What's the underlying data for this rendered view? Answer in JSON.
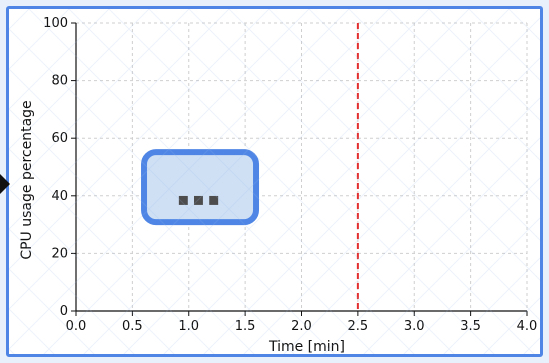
{
  "chart_data": {
    "type": "line",
    "title": "",
    "xlabel": "Time [min]",
    "ylabel": "CPU usage percentage",
    "xlim": [
      0.0,
      4.0
    ],
    "ylim": [
      0,
      100
    ],
    "x_ticks": [
      0.0,
      0.5,
      1.0,
      1.5,
      2.0,
      2.5,
      3.0,
      3.5,
      4.0
    ],
    "x_tick_labels": [
      "0.0",
      "0.5",
      "1.0",
      "1.5",
      "2.0",
      "2.5",
      "3.0",
      "3.5",
      "4.0"
    ],
    "y_ticks": [
      0,
      20,
      40,
      60,
      80,
      100
    ],
    "y_tick_labels": [
      "0",
      "20",
      "40",
      "60",
      "80",
      "100"
    ],
    "grid": true,
    "series": [],
    "reference_lines": [
      {
        "orientation": "vertical",
        "x": 2.5,
        "color": "#e32f2f",
        "style": "dashed"
      }
    ],
    "loading_badge": {
      "text": "▪▪▪",
      "x_center": 1.1,
      "y_center": 43
    }
  },
  "colors": {
    "frame": "#4f86e6",
    "reference_line": "#e32f2f",
    "badge_fill": "#cfe0f4",
    "badge_stroke": "#4f86e6",
    "badge_dots": "#4d4d4d"
  },
  "icons": {
    "left_arrow": "arrow-right-icon",
    "loading": "loading-dots-icon"
  }
}
